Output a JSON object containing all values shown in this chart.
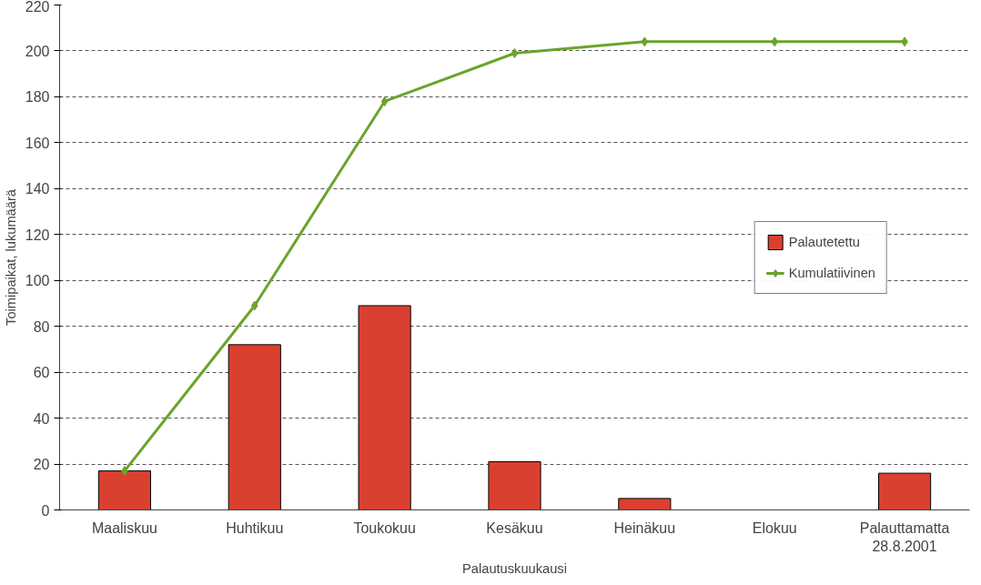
{
  "chart_data": {
    "type": "bar",
    "xlabel": "Palautuskuukausi",
    "ylabel": "Toimipaikat, lukumäärä",
    "categories": [
      "Maaliskuu",
      "Huhtikuu",
      "Toukokuu",
      "Kesäkuu",
      "Heinäkuu",
      "Elokuu",
      "Palauttamatta\n28.8.2001"
    ],
    "series": [
      {
        "name": "Palautetettu",
        "color": "#d94030",
        "values": [
          17,
          72,
          89,
          21,
          5,
          null,
          16
        ]
      },
      {
        "name": "Kumulatiivinen",
        "type": "line",
        "color": "#6aa42c",
        "marker": "diamond",
        "values": [
          17,
          89,
          178,
          199,
          204,
          204,
          204
        ]
      }
    ],
    "ylim": [
      0,
      220
    ],
    "yticks": [
      0,
      20,
      40,
      60,
      80,
      100,
      120,
      140,
      160,
      180,
      200,
      220
    ],
    "grid": "y",
    "legend": "right"
  }
}
